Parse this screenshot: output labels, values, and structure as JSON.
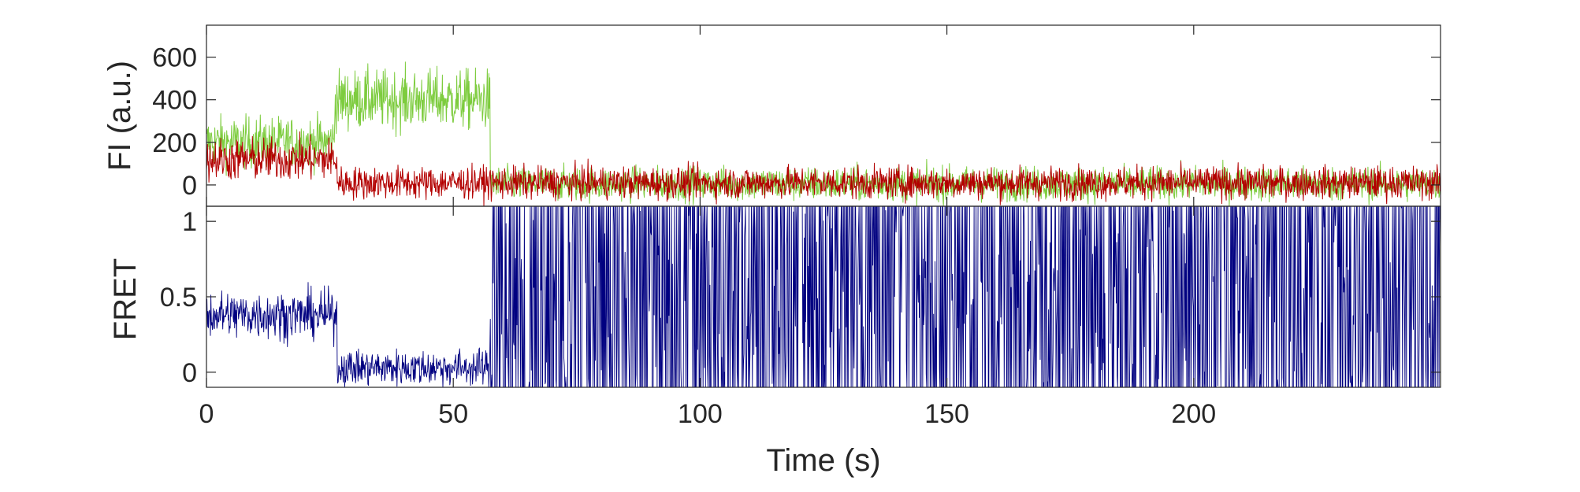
{
  "chart_data": [
    {
      "type": "line",
      "ylabel": "FI (a.u.)",
      "xlabel": "",
      "xlim": [
        0,
        250
      ],
      "ylim": [
        -100,
        750
      ],
      "x_ticks": [
        0,
        50,
        100,
        150,
        200
      ],
      "y_ticks": [
        0,
        200,
        400,
        600
      ],
      "y_tick_labels": [
        "0",
        "200",
        "400",
        "600"
      ],
      "grid": false,
      "series": [
        {
          "color": "#7dcc3e",
          "segments": [
            {
              "t0": 0,
              "t1": 26,
              "mean": 200,
              "noise": 60
            },
            {
              "t0": 26,
              "t1": 57.5,
              "mean": 400,
              "noise": 70
            },
            {
              "t0": 57.5,
              "t1": 250,
              "mean": 5,
              "noise": 40
            }
          ]
        },
        {
          "color": "#b30000",
          "segments": [
            {
              "t0": 0,
              "t1": 26.5,
              "mean": 120,
              "noise": 50
            },
            {
              "t0": 26.5,
              "t1": 250,
              "mean": 10,
              "noise": 38
            }
          ]
        }
      ]
    },
    {
      "type": "line",
      "ylabel": "FRET",
      "xlabel": "Time (s)",
      "xlim": [
        0,
        250
      ],
      "ylim": [
        -0.1,
        1.1
      ],
      "x_ticks": [
        0,
        50,
        100,
        150,
        200
      ],
      "x_tick_labels": [
        "0",
        "50",
        "100",
        "150",
        "200"
      ],
      "y_ticks": [
        0,
        0.5,
        1
      ],
      "y_tick_labels": [
        "0",
        "0.5",
        "1"
      ],
      "grid": false,
      "series": [
        {
          "color": "#000080",
          "segments": [
            {
              "t0": 0,
              "t1": 26.5,
              "mean": 0.38,
              "noise": 0.08,
              "kind": "noisy"
            },
            {
              "t0": 26.5,
              "t1": 57.5,
              "mean": 0.03,
              "noise": 0.06,
              "kind": "noisy"
            },
            {
              "t0": 57.5,
              "t1": 250,
              "mean": 0.5,
              "noise": 0.5,
              "kind": "saturated"
            }
          ]
        }
      ]
    }
  ]
}
